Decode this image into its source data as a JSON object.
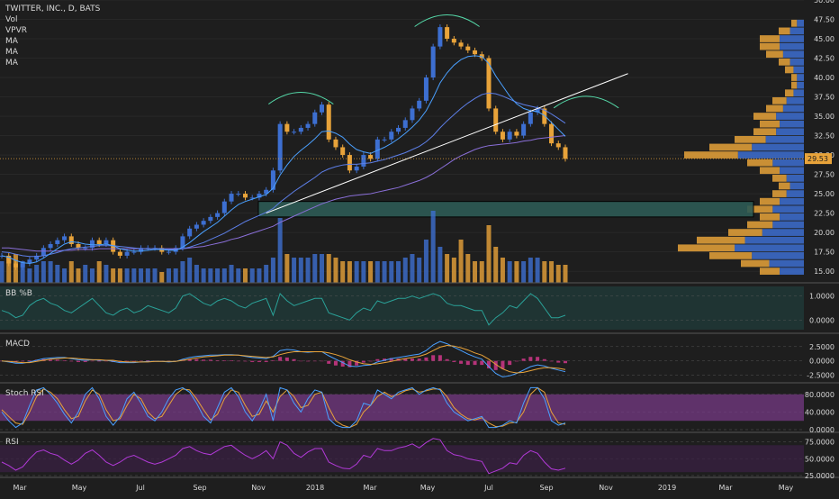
{
  "header": {
    "symbol_line": "TWITTER, INC., D, BATS",
    "legend": [
      "Vol",
      "VPVR",
      "MA",
      "MA",
      "MA"
    ]
  },
  "price_badge": "29.53",
  "colors": {
    "background": "#1e1e1e",
    "up": "#3d6fd1",
    "down": "#e8a33a",
    "ma_fast": "#4aa0ff",
    "ma_mid": "#5d7fe8",
    "ma_slow": "#8a6fd8",
    "zone_fill": "#2d5a55",
    "trendline": "#ffffff",
    "arc": "#55d8a8",
    "bb": "#2aa198",
    "macd": "#4aa0ff",
    "signal": "#e8a33a",
    "hist": "#d0378a",
    "stoch_band": "#7a3a8a",
    "rsi": "#b23ad8",
    "grid": "#333333",
    "text": "#d9d9d9"
  },
  "chart_data": {
    "type": "line",
    "title": "TWITTER, INC., D, BATS",
    "x_axis": [
      "Mar",
      "May",
      "Jul",
      "Sep",
      "Nov",
      "2018",
      "Mar",
      "May",
      "Jul",
      "Sep",
      "Nov",
      "2019",
      "Mar",
      "May"
    ],
    "price": {
      "ylim": [
        13.5,
        50
      ],
      "ticks": [
        "15.00",
        "17.50",
        "20.00",
        "22.50",
        "25.00",
        "27.50",
        "30.00",
        "32.50",
        "35.00",
        "37.50",
        "40.00",
        "42.50",
        "45.00",
        "47.50",
        "50.00"
      ],
      "last": 29.53,
      "close_series": [
        17,
        16,
        15.5,
        16,
        16.5,
        17,
        18,
        18.5,
        19,
        19.5,
        18.5,
        18,
        18,
        19,
        18.5,
        19,
        17.5,
        17,
        17.5,
        17.5,
        18,
        18,
        18,
        17.5,
        17.5,
        18,
        19.5,
        20.5,
        21,
        21.5,
        22,
        22.5,
        24,
        25,
        25,
        24.5,
        24.5,
        25,
        25.5,
        28,
        34,
        33,
        33,
        33.5,
        34,
        35.5,
        36.5,
        32,
        31,
        30,
        28,
        28.5,
        30,
        29.5,
        32,
        32,
        33,
        33.5,
        34.5,
        36,
        37,
        40,
        44,
        46.5,
        45,
        44.5,
        44,
        43.5,
        43,
        42.5,
        36,
        33,
        32,
        33,
        32.5,
        34,
        35.5,
        36,
        34,
        31.5,
        31,
        29.5
      ],
      "ma_fast": [
        17,
        16.8,
        16.4,
        16.1,
        16,
        16.2,
        16.7,
        17.3,
        17.9,
        18.5,
        18.8,
        18.7,
        18.5,
        18.4,
        18.4,
        18.5,
        18.3,
        17.9,
        17.7,
        17.6,
        17.6,
        17.7,
        17.8,
        17.8,
        17.7,
        17.7,
        18.1,
        18.7,
        19.4,
        20.1,
        20.7,
        21.3,
        22.1,
        22.9,
        23.6,
        24,
        24.3,
        24.6,
        24.9,
        25.7,
        27.4,
        28.7,
        29.8,
        30.6,
        31.3,
        32.1,
        33,
        33.1,
        32.8,
        32.3,
        31.4,
        30.7,
        30.4,
        30.2,
        30.6,
        31,
        31.5,
        32.1,
        32.8,
        33.6,
        34.5,
        35.7,
        37.4,
        39.3,
        40.6,
        41.6,
        42.3,
        42.7,
        42.8,
        42.7,
        41.8,
        40.2,
        38.9,
        37.6,
        36.6,
        36,
        35.7,
        35.6,
        35.1,
        34.2,
        33.3,
        32.4
      ],
      "ma_mid": [
        17.5,
        17.4,
        17.2,
        17,
        16.9,
        16.9,
        17,
        17.2,
        17.4,
        17.7,
        17.9,
        18,
        18.1,
        18.2,
        18.3,
        18.3,
        18.3,
        18.2,
        18.1,
        18,
        17.9,
        17.9,
        17.9,
        17.9,
        17.8,
        17.8,
        17.9,
        18.1,
        18.4,
        18.7,
        19.1,
        19.5,
        19.9,
        20.4,
        20.9,
        21.4,
        21.8,
        22.2,
        22.6,
        23.1,
        23.9,
        24.6,
        25.3,
        25.9,
        26.5,
        27.1,
        27.8,
        28.2,
        28.5,
        28.7,
        28.8,
        28.8,
        28.9,
        29,
        29.2,
        29.4,
        29.7,
        30,
        30.3,
        30.7,
        31.1,
        31.7,
        32.5,
        33.5,
        34.4,
        35.2,
        36,
        36.7,
        37.3,
        37.8,
        38,
        37.9,
        37.6,
        37.2,
        36.8,
        36.5,
        36.3,
        36.1,
        35.8,
        35.3,
        34.7,
        34.1
      ],
      "ma_slow": [
        18,
        18,
        17.9,
        17.8,
        17.7,
        17.6,
        17.6,
        17.6,
        17.6,
        17.7,
        17.7,
        17.8,
        17.8,
        17.8,
        17.9,
        17.9,
        17.9,
        17.9,
        17.9,
        17.9,
        17.9,
        17.9,
        17.9,
        17.9,
        17.9,
        17.9,
        17.9,
        18,
        18.1,
        18.2,
        18.4,
        18.6,
        18.8,
        19.1,
        19.3,
        19.6,
        19.9,
        20.2,
        20.5,
        20.8,
        21.3,
        21.7,
        22.1,
        22.5,
        22.9,
        23.3,
        23.7,
        24,
        24.3,
        24.5,
        24.7,
        24.8,
        24.9,
        25,
        25.2,
        25.4,
        25.6,
        25.8,
        26.1,
        26.4,
        26.7,
        27.1,
        27.6,
        28.2,
        28.8,
        29.4,
        29.9,
        30.3,
        30.7,
        31,
        31.2,
        31.3,
        31.4,
        31.5,
        31.6,
        31.8,
        31.9,
        32.1,
        32.2,
        32.3,
        32.4,
        32.5
      ],
      "zone": {
        "low": 22,
        "high": 24,
        "label": ""
      },
      "trendline": {
        "from": [
          38,
          22.5
        ],
        "to": [
          90,
          40.5
        ]
      },
      "arcs": [
        {
          "center": 43,
          "level": 37.5
        },
        {
          "center": 64,
          "level": 47.5
        },
        {
          "center": 84,
          "level": 37
        }
      ]
    },
    "volume": [
      0.3,
      0.35,
      0.4,
      0.3,
      0.2,
      0.25,
      0.3,
      0.3,
      0.25,
      0.2,
      0.3,
      0.2,
      0.25,
      0.2,
      0.3,
      0.25,
      0.2,
      0.2,
      0.2,
      0.2,
      0.2,
      0.2,
      0.2,
      0.15,
      0.2,
      0.2,
      0.3,
      0.35,
      0.25,
      0.2,
      0.2,
      0.2,
      0.2,
      0.25,
      0.2,
      0.2,
      0.2,
      0.2,
      0.25,
      0.35,
      0.9,
      0.4,
      0.35,
      0.35,
      0.35,
      0.4,
      0.4,
      0.4,
      0.35,
      0.3,
      0.3,
      0.3,
      0.3,
      0.3,
      0.3,
      0.3,
      0.3,
      0.3,
      0.35,
      0.4,
      0.35,
      0.6,
      1.0,
      0.5,
      0.4,
      0.35,
      0.6,
      0.4,
      0.3,
      0.3,
      0.8,
      0.5,
      0.35,
      0.3,
      0.3,
      0.3,
      0.35,
      0.35,
      0.3,
      0.3,
      0.25,
      0.25
    ],
    "vpvr": {
      "price_levels": [
        15,
        16,
        17,
        18,
        19,
        20,
        21,
        22,
        23,
        24,
        25,
        26,
        27,
        28,
        29,
        30,
        31,
        32,
        33,
        34,
        35,
        36,
        37,
        38,
        39,
        40,
        41,
        42,
        43,
        44,
        45,
        46,
        47
      ],
      "volume": [
        0.35,
        0.5,
        0.75,
        1.0,
        0.85,
        0.6,
        0.45,
        0.35,
        0.45,
        0.35,
        0.25,
        0.2,
        0.25,
        0.35,
        0.45,
        0.95,
        0.75,
        0.55,
        0.4,
        0.35,
        0.4,
        0.3,
        0.25,
        0.15,
        0.1,
        0.1,
        0.15,
        0.2,
        0.3,
        0.35,
        0.35,
        0.2,
        0.1
      ]
    },
    "bb_percent_b": {
      "label": "BB %B",
      "ticks": [
        "1.0000",
        "0.0000"
      ],
      "ylim": [
        -0.4,
        1.4
      ],
      "values": [
        0.4,
        0.3,
        0.1,
        0.2,
        0.6,
        0.8,
        0.9,
        0.7,
        0.6,
        0.4,
        0.3,
        0.5,
        0.7,
        0.9,
        0.6,
        0.3,
        0.2,
        0.4,
        0.5,
        0.3,
        0.4,
        0.6,
        0.5,
        0.4,
        0.3,
        0.5,
        1.0,
        1.1,
        0.9,
        0.7,
        0.6,
        0.8,
        0.9,
        0.8,
        0.6,
        0.5,
        0.7,
        0.8,
        0.9,
        0.2,
        1.1,
        0.8,
        0.6,
        0.7,
        0.8,
        0.9,
        0.9,
        0.3,
        0.2,
        0.1,
        0.0,
        0.3,
        0.5,
        0.4,
        0.8,
        0.7,
        0.8,
        0.9,
        0.9,
        1.0,
        0.9,
        1.0,
        1.1,
        1.0,
        0.7,
        0.6,
        0.6,
        0.5,
        0.4,
        0.4,
        -0.2,
        0.1,
        0.3,
        0.6,
        0.5,
        0.8,
        1.1,
        0.9,
        0.5,
        0.1,
        0.1,
        0.2
      ]
    },
    "macd": {
      "label": "MACD",
      "ticks": [
        "2.5000",
        "0.0000",
        "-2.5000"
      ],
      "ylim": [
        -3.2,
        4.2
      ],
      "macd_line": [
        0,
        -0.2,
        -0.4,
        -0.4,
        -0.2,
        0.1,
        0.4,
        0.5,
        0.6,
        0.6,
        0.4,
        0.2,
        0.1,
        0.2,
        0.1,
        0.1,
        -0.1,
        -0.3,
        -0.3,
        -0.3,
        -0.2,
        -0.1,
        -0.1,
        -0.1,
        -0.2,
        -0.1,
        0.3,
        0.6,
        0.8,
        0.9,
        1.0,
        1.0,
        1.1,
        1.1,
        1.0,
        0.8,
        0.6,
        0.5,
        0.4,
        0.8,
        1.8,
        2.0,
        1.9,
        1.6,
        1.5,
        1.6,
        1.6,
        0.9,
        0.3,
        -0.3,
        -0.9,
        -1.0,
        -0.8,
        -0.7,
        -0.2,
        0.1,
        0.4,
        0.6,
        0.8,
        1.0,
        1.2,
        1.8,
        2.8,
        3.4,
        3.0,
        2.4,
        1.8,
        1.2,
        0.7,
        0.3,
        -1.0,
        -2.2,
        -2.8,
        -2.6,
        -2.2,
        -1.6,
        -1.0,
        -0.7,
        -0.9,
        -1.3,
        -1.6,
        -1.9
      ],
      "signal_line": [
        0,
        -0.1,
        -0.2,
        -0.3,
        -0.3,
        -0.1,
        0.1,
        0.3,
        0.4,
        0.5,
        0.5,
        0.4,
        0.3,
        0.2,
        0.2,
        0.1,
        0.1,
        -0.1,
        -0.2,
        -0.2,
        -0.2,
        -0.2,
        -0.1,
        -0.1,
        -0.1,
        -0.1,
        0.1,
        0.3,
        0.5,
        0.7,
        0.8,
        0.9,
        1.0,
        1.0,
        1.0,
        0.9,
        0.8,
        0.7,
        0.6,
        0.7,
        1.1,
        1.4,
        1.6,
        1.6,
        1.6,
        1.6,
        1.6,
        1.4,
        1.1,
        0.7,
        0.2,
        -0.2,
        -0.5,
        -0.6,
        -0.5,
        -0.3,
        -0.1,
        0.2,
        0.4,
        0.6,
        0.8,
        1.2,
        1.8,
        2.4,
        2.7,
        2.6,
        2.3,
        1.9,
        1.4,
        1.0,
        0.3,
        -0.6,
        -1.4,
        -1.9,
        -2.1,
        -2.0,
        -1.7,
        -1.4,
        -1.2,
        -1.2,
        -1.3,
        -1.5
      ]
    },
    "stoch_rsi": {
      "label": "Stoch RSI",
      "ticks": [
        "80.0000",
        "40.0000",
        "0.0000"
      ],
      "ylim": [
        0,
        100
      ],
      "band": [
        20,
        80
      ],
      "k_line": [
        40,
        20,
        5,
        15,
        55,
        90,
        95,
        80,
        60,
        35,
        15,
        40,
        80,
        95,
        70,
        30,
        10,
        30,
        70,
        85,
        60,
        30,
        20,
        40,
        70,
        90,
        95,
        85,
        60,
        30,
        15,
        50,
        85,
        95,
        75,
        40,
        20,
        45,
        80,
        20,
        95,
        90,
        60,
        40,
        70,
        90,
        85,
        25,
        10,
        5,
        5,
        20,
        60,
        55,
        90,
        80,
        70,
        85,
        90,
        95,
        80,
        90,
        95,
        90,
        60,
        40,
        30,
        20,
        25,
        30,
        5,
        5,
        10,
        20,
        15,
        60,
        95,
        95,
        70,
        20,
        10,
        15
      ],
      "d_line": [
        45,
        30,
        15,
        12,
        40,
        75,
        92,
        85,
        70,
        45,
        25,
        30,
        65,
        90,
        80,
        45,
        20,
        25,
        55,
        80,
        70,
        40,
        25,
        30,
        55,
        80,
        92,
        90,
        70,
        45,
        22,
        35,
        70,
        90,
        85,
        55,
        30,
        35,
        65,
        40,
        75,
        90,
        75,
        50,
        55,
        80,
        85,
        50,
        20,
        10,
        5,
        12,
        40,
        55,
        75,
        85,
        75,
        80,
        88,
        92,
        85,
        88,
        92,
        92,
        75,
        50,
        35,
        25,
        22,
        27,
        15,
        7,
        8,
        15,
        17,
        40,
        80,
        95,
        85,
        40,
        15,
        12
      ]
    },
    "rsi": {
      "label": "RSI",
      "ticks": [
        "75.0000",
        "50.0000",
        "25.0000"
      ],
      "ylim": [
        25,
        85
      ],
      "band": [
        30,
        70
      ],
      "values": [
        45,
        40,
        33,
        38,
        50,
        60,
        63,
        58,
        55,
        48,
        42,
        48,
        58,
        63,
        55,
        45,
        40,
        45,
        52,
        55,
        50,
        45,
        42,
        45,
        50,
        55,
        65,
        68,
        62,
        58,
        56,
        62,
        68,
        70,
        62,
        55,
        50,
        55,
        62,
        50,
        75,
        70,
        58,
        52,
        60,
        65,
        65,
        45,
        40,
        36,
        35,
        42,
        55,
        52,
        65,
        62,
        62,
        66,
        68,
        72,
        66,
        74,
        80,
        78,
        62,
        56,
        54,
        50,
        48,
        46,
        28,
        32,
        36,
        44,
        42,
        55,
        62,
        58,
        45,
        35,
        33,
        36
      ]
    }
  }
}
